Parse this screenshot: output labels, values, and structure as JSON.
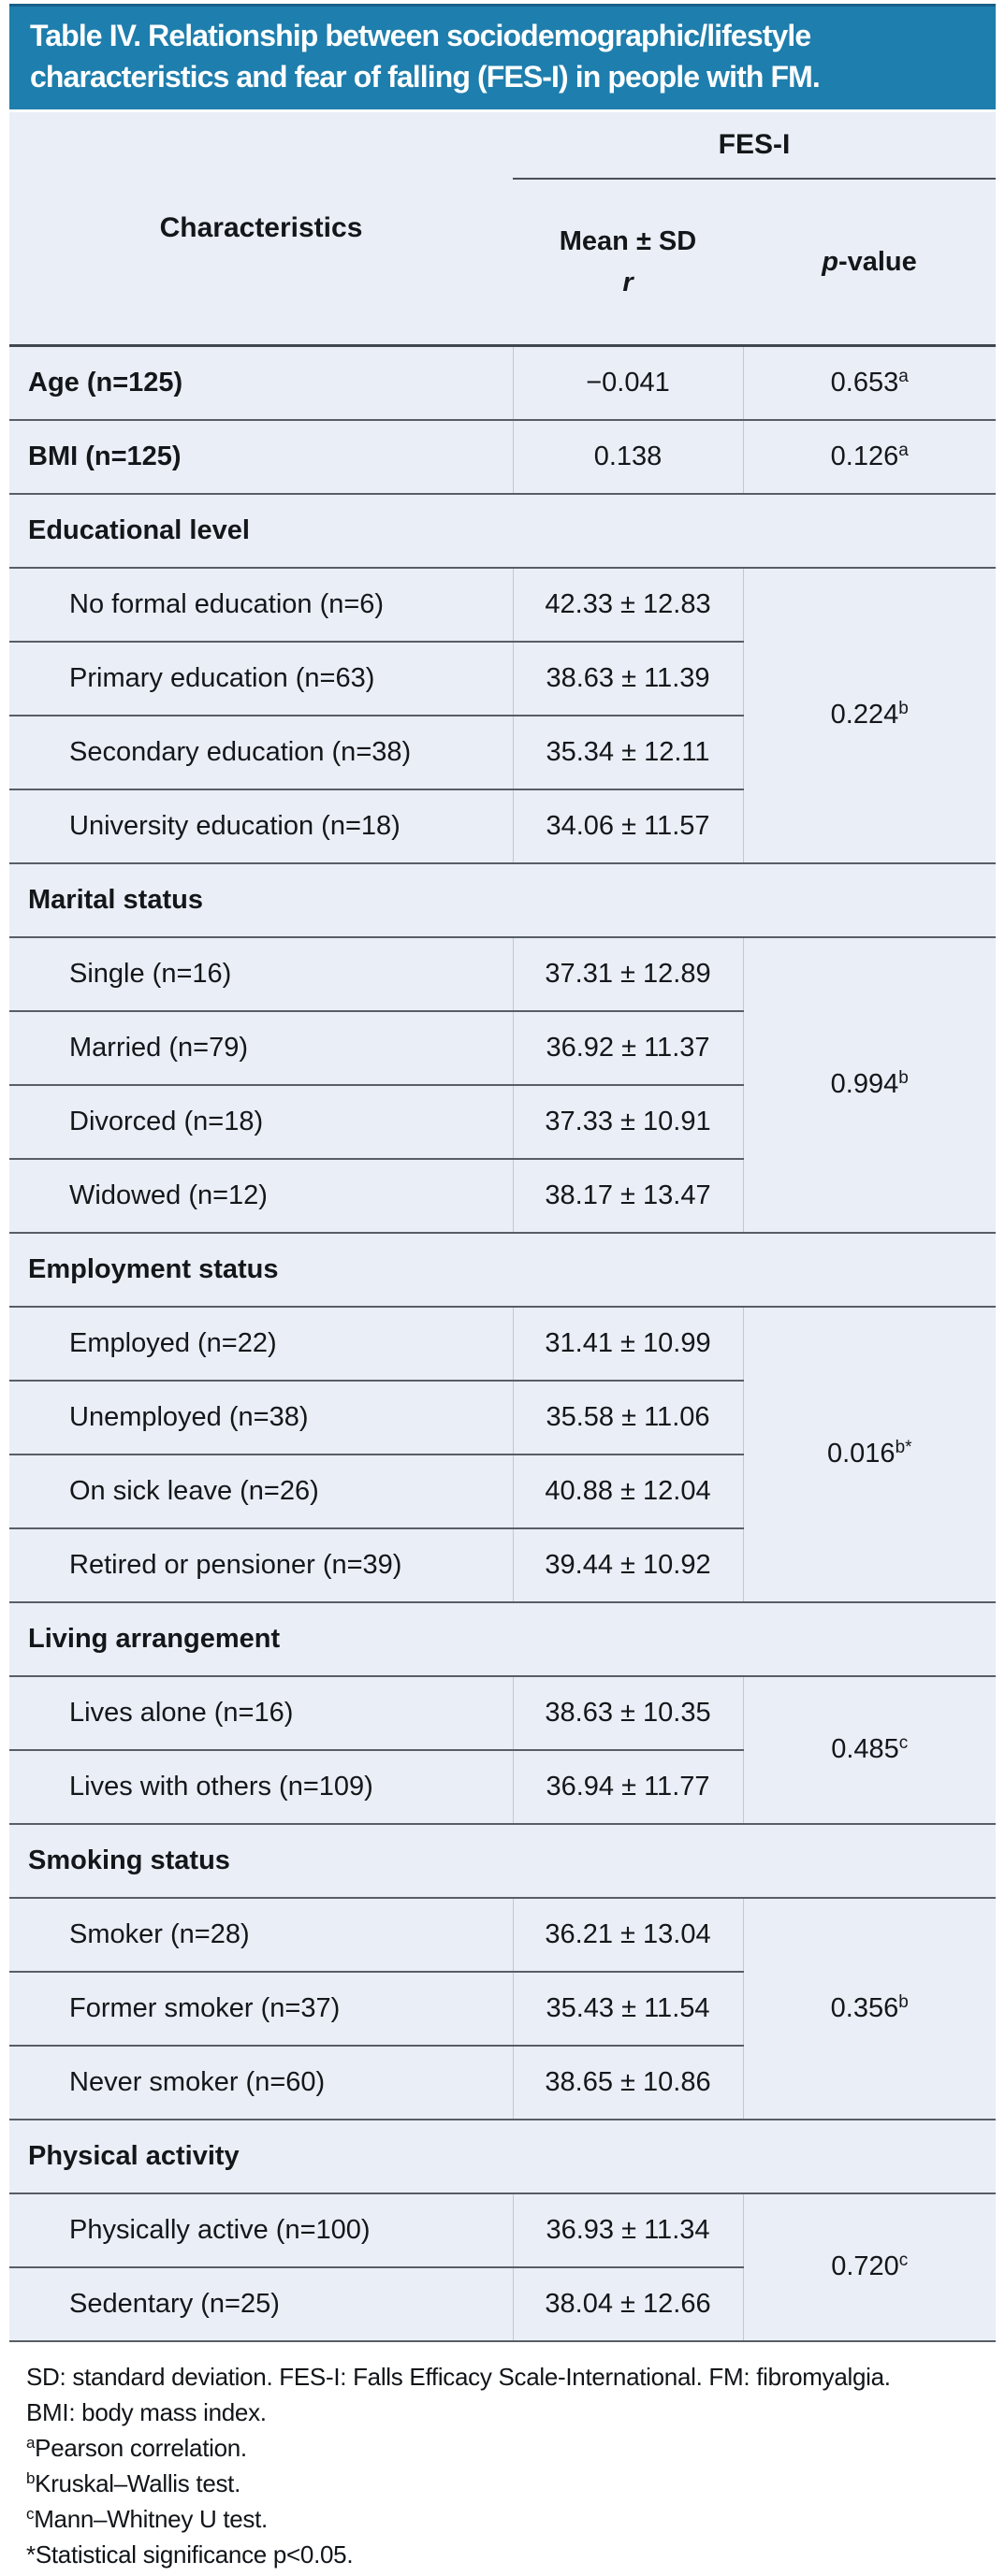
{
  "colors": {
    "title_bar": "#1e7ead",
    "title_bar_top_border": "#175f88",
    "table_background": "#eaeef6",
    "rule_gray": "#585e67",
    "title_text": "#ffffff",
    "body_text": "#14171a"
  },
  "title": {
    "line1": "Table IV. Relationship between sociodemographic/lifestyle",
    "line2": "characteristics and fear of falling (FES-I) in people with FM."
  },
  "header": {
    "characteristics": "Characteristics",
    "fes_i": "FES-I",
    "mean_sd": "Mean ± SD",
    "r": "r",
    "p_italic": "p",
    "p_rest": "-value"
  },
  "table": {
    "simple_rows": [
      {
        "label": "Age (n=125)",
        "r_value": "−0.041",
        "p": "0.653",
        "p_sup": "a"
      },
      {
        "label": "BMI (n=125)",
        "r_value": "0.138",
        "p": "0.126",
        "p_sup": "a"
      }
    ],
    "groups": [
      {
        "header": "Educational level",
        "p": "0.224",
        "p_sup": "b",
        "rows": [
          {
            "label": "No formal education (n=6)",
            "mean": "42.33 ± 12.83"
          },
          {
            "label": "Primary education (n=63)",
            "mean": "38.63 ± 11.39"
          },
          {
            "label": "Secondary education (n=38)",
            "mean": "35.34 ± 12.11"
          },
          {
            "label": "University education (n=18)",
            "mean": "34.06 ± 11.57"
          }
        ]
      },
      {
        "header": "Marital status",
        "p": "0.994",
        "p_sup": "b",
        "rows": [
          {
            "label": "Single (n=16)",
            "mean": "37.31 ± 12.89"
          },
          {
            "label": "Married (n=79)",
            "mean": "36.92 ± 11.37"
          },
          {
            "label": "Divorced (n=18)",
            "mean": "37.33 ± 10.91"
          },
          {
            "label": "Widowed (n=12)",
            "mean": "38.17 ± 13.47"
          }
        ]
      },
      {
        "header": "Employment status",
        "p": "0.016",
        "p_sup": "b*",
        "rows": [
          {
            "label": "Employed (n=22)",
            "mean": "31.41 ± 10.99"
          },
          {
            "label": "Unemployed (n=38)",
            "mean": "35.58 ± 11.06"
          },
          {
            "label": "On sick leave (n=26)",
            "mean": "40.88 ± 12.04"
          },
          {
            "label": "Retired or pensioner (n=39)",
            "mean": "39.44 ± 10.92"
          }
        ]
      },
      {
        "header": "Living arrangement",
        "p": "0.485",
        "p_sup": "c",
        "rows": [
          {
            "label": "Lives alone (n=16)",
            "mean": "38.63 ± 10.35"
          },
          {
            "label": "Lives with others (n=109)",
            "mean": "36.94 ± 11.77"
          }
        ]
      },
      {
        "header": "Smoking status",
        "p": "0.356",
        "p_sup": "b",
        "rows": [
          {
            "label": "Smoker (n=28)",
            "mean": "36.21 ± 13.04"
          },
          {
            "label": "Former smoker (n=37)",
            "mean": "35.43 ± 11.54"
          },
          {
            "label": "Never smoker (n=60)",
            "mean": "38.65 ± 10.86"
          }
        ]
      },
      {
        "header": "Physical activity",
        "p": "0.720",
        "p_sup": "c",
        "rows": [
          {
            "label": "Physically active (n=100)",
            "mean": "36.93 ± 11.34"
          },
          {
            "label": "Sedentary (n=25)",
            "mean": "38.04 ± 12.66"
          }
        ]
      }
    ]
  },
  "footnotes": [
    {
      "sup": "",
      "text": "SD: standard deviation. FES-I: Falls Efficacy Scale-International. FM: fibromyalgia."
    },
    {
      "sup": "",
      "text": "BMI: body mass index."
    },
    {
      "sup": "a",
      "text": "Pearson correlation."
    },
    {
      "sup": "b",
      "text": "Kruskal–Wallis test."
    },
    {
      "sup": "c",
      "text": "Mann–Whitney U test."
    },
    {
      "sup": "",
      "text": "*Statistical significance p<0.05."
    }
  ]
}
